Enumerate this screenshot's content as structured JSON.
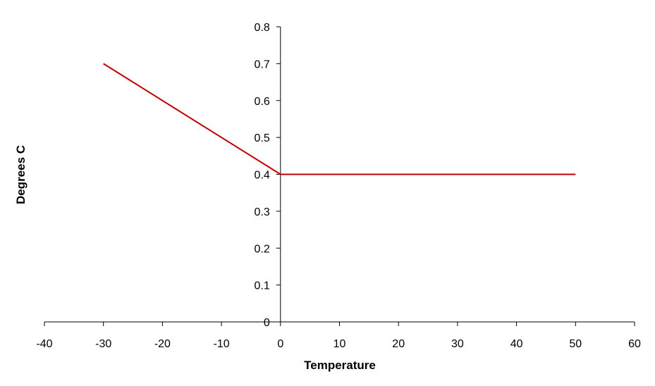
{
  "chart_data": {
    "type": "line",
    "title": "",
    "xlabel": "Temperature",
    "ylabel": "Degrees C",
    "xlim": [
      -40,
      60
    ],
    "ylim": [
      0,
      0.8
    ],
    "x_ticks": [
      "-40",
      "-30",
      "-20",
      "-10",
      "0",
      "10",
      "20",
      "30",
      "40",
      "50",
      "60"
    ],
    "y_ticks": [
      "0",
      "0.1",
      "0.2",
      "0.3",
      "0.4",
      "0.5",
      "0.6",
      "0.7",
      "0.8"
    ],
    "grid": false,
    "legend": "none",
    "series": [
      {
        "color": "#c00000",
        "points": [
          {
            "x": -30,
            "y": 0.7
          },
          {
            "x": 0,
            "y": 0.4
          },
          {
            "x": 50,
            "y": 0.4
          }
        ]
      }
    ]
  }
}
